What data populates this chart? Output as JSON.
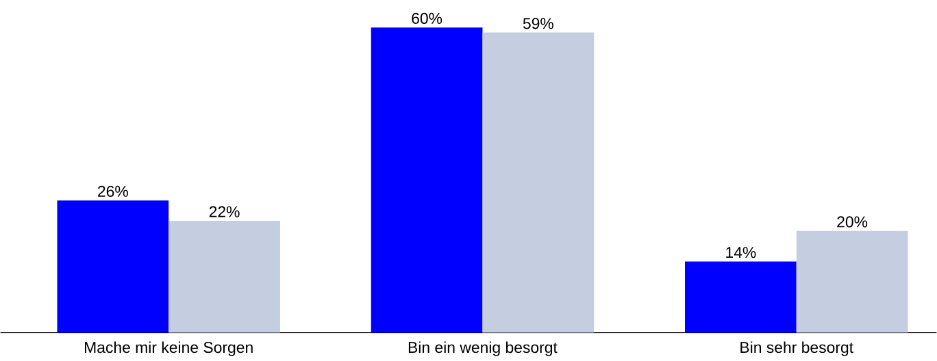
{
  "chart_data": {
    "type": "bar",
    "categories": [
      "Mache mir keine Sorgen",
      "Bin ein wenig besorgt",
      "Bin sehr besorgt"
    ],
    "series": [
      {
        "color": "#0000ff",
        "values": [
          26,
          60,
          14
        ],
        "value_labels": [
          "26%",
          "60%",
          "14%"
        ]
      },
      {
        "color": "#c4cee0",
        "values": [
          22,
          59,
          20
        ],
        "value_labels": [
          "22%",
          "59%",
          "20%"
        ]
      }
    ]
  }
}
